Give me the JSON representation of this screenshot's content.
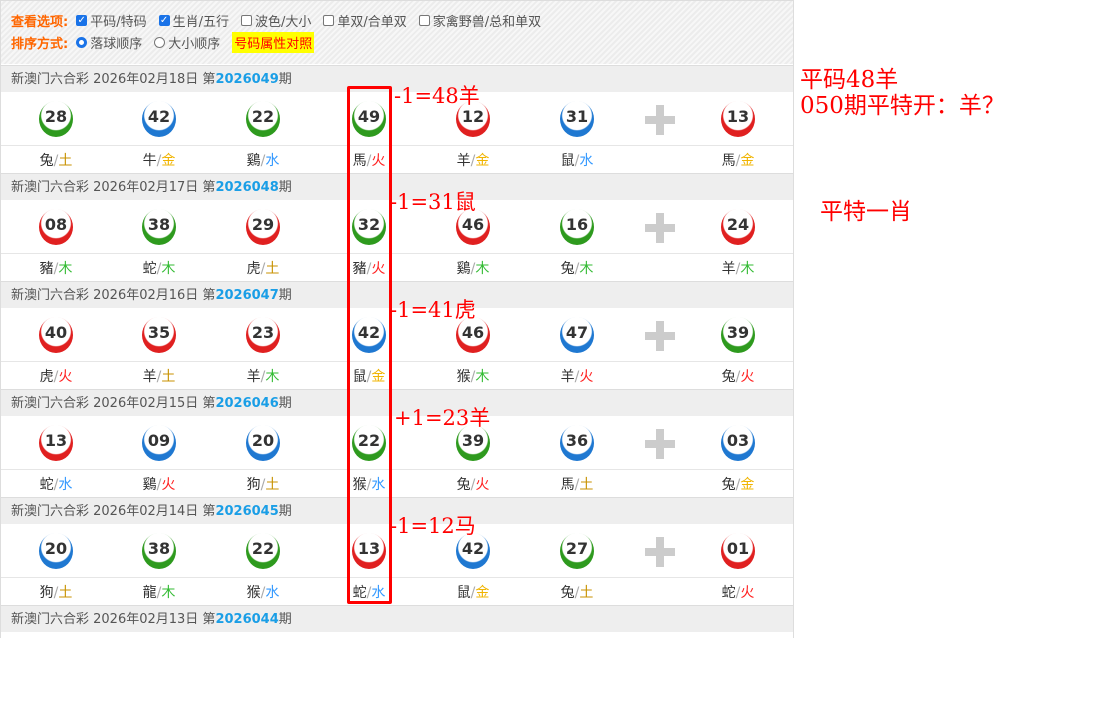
{
  "options": {
    "view_label": "查看选项:",
    "view": [
      {
        "label": "平码/特码",
        "checked": true
      },
      {
        "label": "生肖/五行",
        "checked": true
      },
      {
        "label": "波色/大小",
        "checked": false
      },
      {
        "label": "单双/合单双",
        "checked": false
      },
      {
        "label": "家禽野兽/总和单双",
        "checked": false
      }
    ],
    "sort_label": "排序方式:",
    "sort": [
      {
        "label": "落球顺序",
        "selected": true
      },
      {
        "label": "大小顺序",
        "selected": false
      }
    ],
    "compare_link": "号码属性对照"
  },
  "colors": {
    "red": "#e02020",
    "blue": "#1f78d1",
    "green": "#2e9a1e",
    "土": "#c89200",
    "金": "#f0b400",
    "水": "#3399ff",
    "木": "#33bb33",
    "火": "#ff2020"
  },
  "draws": [
    {
      "prefix": "新澳门六合彩 2026年02月18日 第",
      "issue": "2026049",
      "suffix": "期",
      "balls": [
        {
          "n": "28",
          "c": "green",
          "z": "兔",
          "e": "土"
        },
        {
          "n": "42",
          "c": "blue",
          "z": "牛",
          "e": "金"
        },
        {
          "n": "22",
          "c": "green",
          "z": "鷄",
          "e": "水"
        },
        {
          "n": "49",
          "c": "green",
          "z": "馬",
          "e": "火"
        },
        {
          "n": "12",
          "c": "red",
          "z": "羊",
          "e": "金"
        },
        {
          "n": "31",
          "c": "blue",
          "z": "鼠",
          "e": "水"
        },
        {
          "n": "13",
          "c": "red",
          "z": "馬",
          "e": "金"
        }
      ]
    },
    {
      "prefix": "新澳门六合彩 2026年02月17日 第",
      "issue": "2026048",
      "suffix": "期",
      "balls": [
        {
          "n": "08",
          "c": "red",
          "z": "豬",
          "e": "木"
        },
        {
          "n": "38",
          "c": "green",
          "z": "蛇",
          "e": "木"
        },
        {
          "n": "29",
          "c": "red",
          "z": "虎",
          "e": "土"
        },
        {
          "n": "32",
          "c": "green",
          "z": "豬",
          "e": "火"
        },
        {
          "n": "46",
          "c": "red",
          "z": "鷄",
          "e": "木"
        },
        {
          "n": "16",
          "c": "green",
          "z": "兔",
          "e": "木"
        },
        {
          "n": "24",
          "c": "red",
          "z": "羊",
          "e": "木"
        }
      ]
    },
    {
      "prefix": "新澳门六合彩 2026年02月16日 第",
      "issue": "2026047",
      "suffix": "期",
      "balls": [
        {
          "n": "40",
          "c": "red",
          "z": "虎",
          "e": "火"
        },
        {
          "n": "35",
          "c": "red",
          "z": "羊",
          "e": "土"
        },
        {
          "n": "23",
          "c": "red",
          "z": "羊",
          "e": "木"
        },
        {
          "n": "42",
          "c": "blue",
          "z": "鼠",
          "e": "金"
        },
        {
          "n": "46",
          "c": "red",
          "z": "猴",
          "e": "木"
        },
        {
          "n": "47",
          "c": "blue",
          "z": "羊",
          "e": "火"
        },
        {
          "n": "39",
          "c": "green",
          "z": "兔",
          "e": "火"
        }
      ]
    },
    {
      "prefix": "新澳门六合彩 2026年02月15日 第",
      "issue": "2026046",
      "suffix": "期",
      "balls": [
        {
          "n": "13",
          "c": "red",
          "z": "蛇",
          "e": "水"
        },
        {
          "n": "09",
          "c": "blue",
          "z": "鷄",
          "e": "火"
        },
        {
          "n": "20",
          "c": "blue",
          "z": "狗",
          "e": "土"
        },
        {
          "n": "22",
          "c": "green",
          "z": "猴",
          "e": "水"
        },
        {
          "n": "39",
          "c": "green",
          "z": "兔",
          "e": "火"
        },
        {
          "n": "36",
          "c": "blue",
          "z": "馬",
          "e": "土"
        },
        {
          "n": "03",
          "c": "blue",
          "z": "兔",
          "e": "金"
        }
      ]
    },
    {
      "prefix": "新澳门六合彩 2026年02月14日 第",
      "issue": "2026045",
      "suffix": "期",
      "balls": [
        {
          "n": "20",
          "c": "blue",
          "z": "狗",
          "e": "土"
        },
        {
          "n": "38",
          "c": "green",
          "z": "龍",
          "e": "木"
        },
        {
          "n": "22",
          "c": "green",
          "z": "猴",
          "e": "水"
        },
        {
          "n": "13",
          "c": "red",
          "z": "蛇",
          "e": "水"
        },
        {
          "n": "42",
          "c": "blue",
          "z": "鼠",
          "e": "金"
        },
        {
          "n": "27",
          "c": "green",
          "z": "兔",
          "e": "土"
        },
        {
          "n": "01",
          "c": "red",
          "z": "蛇",
          "e": "火"
        }
      ]
    },
    {
      "prefix": "新澳门六合彩 2026年02月13日 第",
      "issue": "2026044",
      "suffix": "期",
      "balls": []
    }
  ],
  "annotations": {
    "a1": "-1=48羊",
    "a2": "-1=31鼠",
    "a3": "-1=41虎",
    "a4": "+1=23羊",
    "a5": "-1=12马",
    "note1": "平码48羊",
    "note2": "050期平特开：羊？",
    "note3": "平特一肖"
  }
}
